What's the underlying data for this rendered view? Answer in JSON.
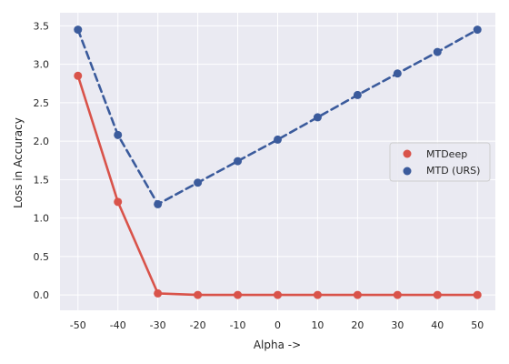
{
  "chart_data": {
    "type": "line",
    "title": "",
    "xlabel": "Alpha ->",
    "ylabel": "Loss in Accuracy",
    "categories": [
      "-50",
      "-40",
      "-30",
      "-20",
      "-10",
      "0",
      "10",
      "20",
      "30",
      "40",
      "50"
    ],
    "x": [
      -50,
      -40,
      -30,
      -20,
      -10,
      0,
      10,
      20,
      30,
      40,
      50
    ],
    "xlim": [
      -54.5,
      54.5
    ],
    "ylim": [
      -0.2,
      3.67
    ],
    "yticks": [
      0.0,
      0.5,
      1.0,
      1.5,
      2.0,
      2.5,
      3.0,
      3.5
    ],
    "ytick_labels": [
      "0.0",
      "0.5",
      "1.0",
      "1.5",
      "2.0",
      "2.5",
      "3.0",
      "3.5"
    ],
    "grid": true,
    "legend_position": "center-right",
    "series": [
      {
        "name": "MTDeep",
        "color": "#d9534a",
        "line_style": "solid",
        "values": [
          2.85,
          1.21,
          0.02,
          0.0,
          0.0,
          0.0,
          0.0,
          0.0,
          0.0,
          0.0,
          0.0
        ]
      },
      {
        "name": "MTD (URS)",
        "color": "#3b5b9c",
        "line_style": "dashed",
        "values": [
          3.45,
          2.08,
          1.18,
          1.46,
          1.74,
          2.02,
          2.31,
          2.6,
          2.88,
          3.16,
          3.45
        ]
      }
    ],
    "style": {
      "background": "#eaeaf2",
      "grid_color": "#ffffff"
    }
  }
}
